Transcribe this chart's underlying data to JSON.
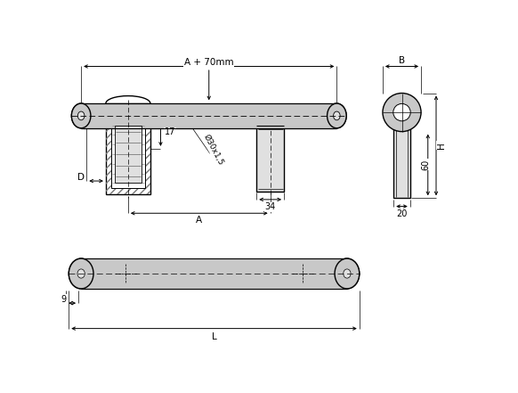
{
  "bg_color": "#ffffff",
  "line_color": "#000000",
  "gray_fill": "#c8c8c8",
  "light_gray": "#e0e0e0",
  "figsize": [
    5.82,
    4.41
  ],
  "dpi": 100,
  "annotations": {
    "A_plus_70": "A + 70mm",
    "A": "A",
    "D": "D",
    "dim_17": "17",
    "dim_34": "34",
    "dim_phi": "Ø30x1,5",
    "dim_B": "B",
    "dim_H": "H",
    "dim_60": "60",
    "dim_20": "20",
    "dim_9": "9",
    "dim_L": "L"
  }
}
